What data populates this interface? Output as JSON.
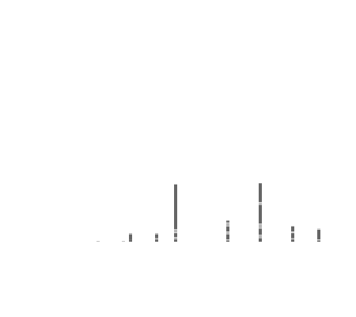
{
  "chart_data": {
    "type": "bar",
    "title": "",
    "xlabel": "",
    "ylabel": "",
    "grid": false,
    "legend": "none",
    "colors": {
      "dark": "#666666",
      "light": "#b5b5b5"
    },
    "x": [
      124,
      156,
      165,
      198,
      222,
      288,
      329,
      370,
      403
    ],
    "ylim": [
      0,
      80
    ],
    "series": [
      {
        "shade": "dark",
        "values": [
          0,
          0,
          2,
          2,
          2,
          1,
          3,
          2,
          1
        ]
      },
      {
        "shade": "light",
        "values": [
          1,
          1,
          0,
          1,
          2,
          1,
          3,
          1,
          1
        ]
      },
      {
        "shade": "dark",
        "values": [
          0,
          0,
          5,
          4,
          4,
          5,
          6,
          5,
          9
        ]
      },
      {
        "shade": "light",
        "values": [
          0,
          0,
          1,
          1,
          3,
          2,
          4,
          1,
          1
        ]
      },
      {
        "shade": "dark",
        "values": [
          0,
          0,
          0,
          0,
          40,
          5,
          17,
          5,
          0
        ]
      },
      {
        "shade": "light",
        "values": [
          0,
          0,
          0,
          0,
          0,
          3,
          2,
          0,
          0
        ]
      },
      {
        "shade": "dark",
        "values": [
          0,
          0,
          0,
          0,
          0,
          2,
          17,
          0,
          0
        ]
      }
    ]
  }
}
